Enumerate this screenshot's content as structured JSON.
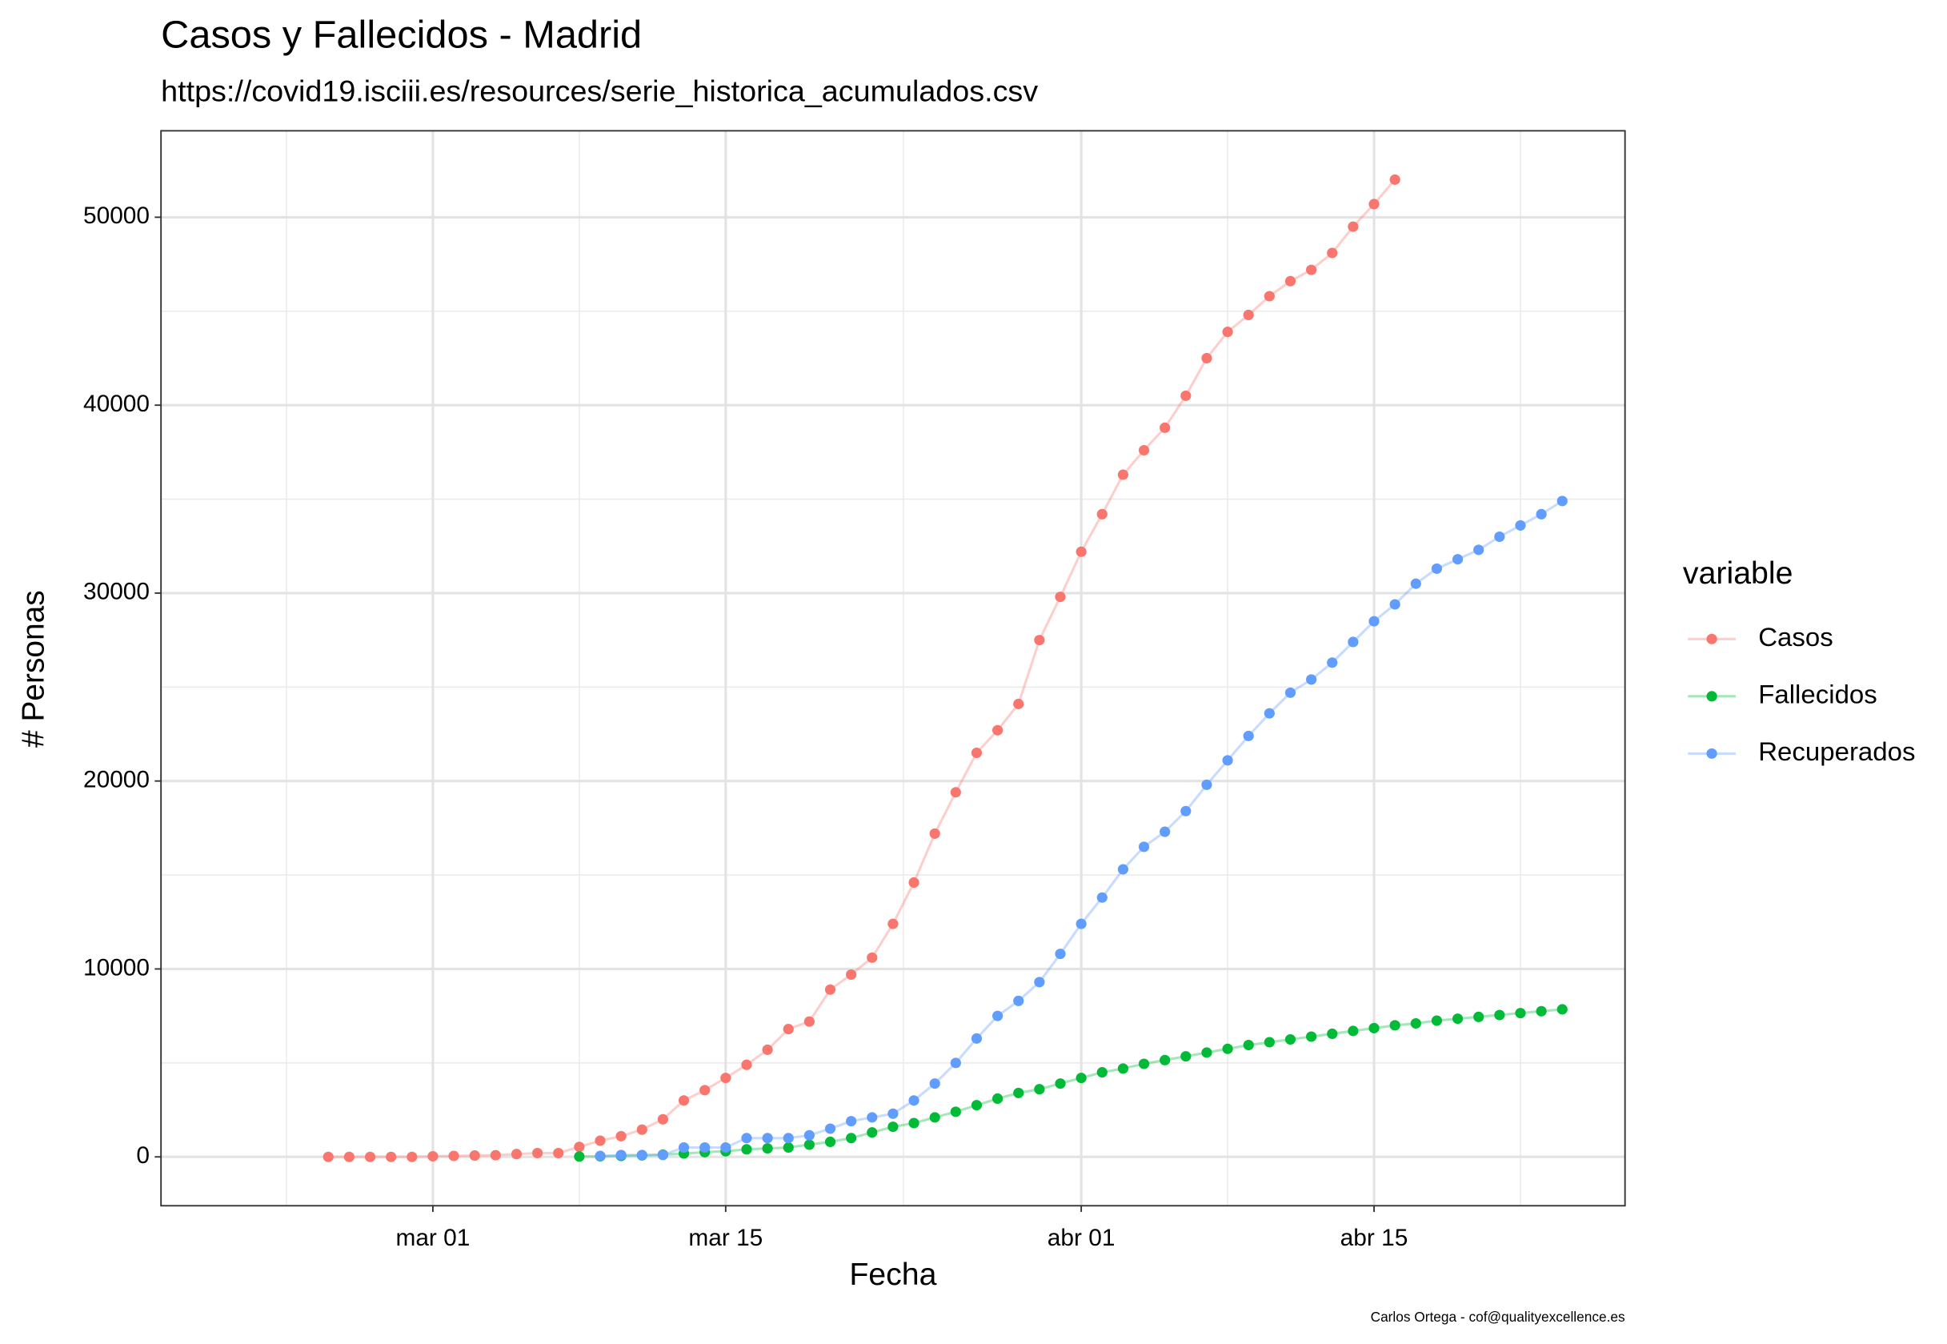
{
  "chart_data": {
    "type": "line",
    "title": "Casos y Fallecidos - Madrid",
    "subtitle": "https://covid19.isciii.es/resources/serie_historica_acumulados.csv",
    "xlabel": "Fecha",
    "ylabel": "# Personas",
    "caption": "Carlos Ortega - cof@qualityexcellence.es",
    "legend_title": "variable",
    "legend_position": "right",
    "grid": true,
    "x": [
      "feb 25",
      "feb 26",
      "feb 27",
      "feb 28",
      "feb 29",
      "mar 01",
      "mar 02",
      "mar 03",
      "mar 04",
      "mar 05",
      "mar 06",
      "mar 07",
      "mar 08",
      "mar 09",
      "mar 10",
      "mar 11",
      "mar 12",
      "mar 13",
      "mar 14",
      "mar 15",
      "mar 16",
      "mar 17",
      "mar 18",
      "mar 19",
      "mar 20",
      "mar 21",
      "mar 22",
      "mar 23",
      "mar 24",
      "mar 25",
      "mar 26",
      "mar 27",
      "mar 28",
      "mar 29",
      "mar 30",
      "mar 31",
      "abr 01",
      "abr 02",
      "abr 03",
      "abr 04",
      "abr 05",
      "abr 06",
      "abr 07",
      "abr 08",
      "abr 09",
      "abr 10",
      "abr 11",
      "abr 12",
      "abr 13",
      "abr 14",
      "abr 15",
      "abr 16",
      "abr 17",
      "abr 18",
      "abr 19",
      "abr 20",
      "abr 21",
      "abr 22",
      "abr 23",
      "abr 24"
    ],
    "xlim": [
      "feb 17",
      "abr 27"
    ],
    "xticks": [
      "mar 01",
      "mar 15",
      "abr 01",
      "abr 15"
    ],
    "ylim": [
      -2600,
      54600
    ],
    "yticks": [
      0,
      10000,
      20000,
      30000,
      40000,
      50000
    ],
    "series": [
      {
        "name": "Casos",
        "color": "#F8766D",
        "values": [
          0,
          0,
          0,
          0,
          0,
          30,
          50,
          70,
          90,
          150,
          200,
          200,
          530,
          860,
          1100,
          1450,
          2000,
          3000,
          3550,
          4200,
          4900,
          5700,
          6800,
          7200,
          8900,
          9700,
          10600,
          12400,
          14600,
          17200,
          19400,
          21500,
          22700,
          24100,
          27500,
          29800,
          32200,
          34200,
          36300,
          37600,
          38800,
          40500,
          42500,
          43900,
          44800,
          45800,
          46600,
          47200,
          48100,
          49500,
          50700,
          52000,
          null,
          null,
          null,
          null,
          null,
          null,
          null,
          null
        ]
      },
      {
        "name": "Fallecidos",
        "color": "#00BA38",
        "values": [
          null,
          null,
          null,
          null,
          null,
          null,
          null,
          null,
          null,
          null,
          null,
          null,
          20,
          30,
          50,
          80,
          120,
          180,
          250,
          300,
          400,
          450,
          500,
          650,
          800,
          1000,
          1300,
          1600,
          1800,
          2100,
          2400,
          2750,
          3100,
          3400,
          3600,
          3900,
          4200,
          4500,
          4700,
          4950,
          5150,
          5350,
          5550,
          5750,
          5950,
          6100,
          6250,
          6400,
          6550,
          6700,
          6850,
          7000,
          7100,
          7250,
          7350,
          7450,
          7550,
          7650,
          7750,
          7850
        ]
      },
      {
        "name": "Recuperados",
        "color": "#619CFF",
        "values": [
          null,
          null,
          null,
          null,
          null,
          null,
          null,
          null,
          null,
          null,
          null,
          null,
          null,
          50,
          100,
          100,
          100,
          500,
          500,
          500,
          1000,
          1000,
          1000,
          1150,
          1500,
          1900,
          2100,
          2300,
          3000,
          3900,
          5000,
          6300,
          7500,
          8300,
          9300,
          10800,
          12400,
          13800,
          15300,
          16500,
          17300,
          18400,
          19800,
          21100,
          22400,
          23600,
          24700,
          25400,
          26300,
          27400,
          28500,
          29400,
          30500,
          31300,
          31800,
          32300,
          33000,
          33600,
          34200,
          34900
        ]
      }
    ]
  }
}
